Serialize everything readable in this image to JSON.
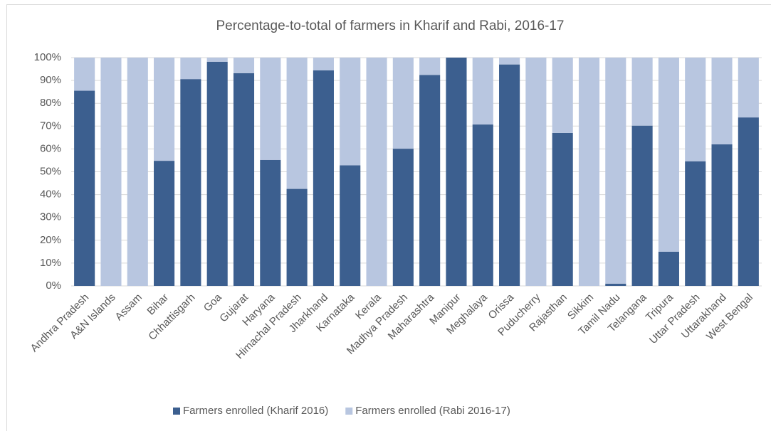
{
  "chart_data": {
    "type": "bar",
    "stacked": true,
    "title": "Percentage-to-total of farmers in Kharif and Rabi, 2016-17",
    "categories": [
      "Andhra Pradesh",
      "A&N Islands",
      "Assam",
      "Bihar",
      "Chhattisgarh",
      "Goa",
      "Gujarat",
      "Haryana",
      "Himachal Pradesh",
      "Jharkhand",
      "Karnataka",
      "Kerala",
      "Madhya Pradesh",
      "Maharashtra",
      "Manipur",
      "Meghalaya",
      "Orissa",
      "Puducherry",
      "Rajasthan",
      "Sikkim",
      "Tamil Nadu",
      "Telangana",
      "Tripura",
      "Uttar Pradesh",
      "Uttarakhand",
      "West Bengal"
    ],
    "series": [
      {
        "name": "Farmers enrolled (Kharif 2016)",
        "color": "#3c5f8f",
        "values": [
          85.5,
          0,
          0,
          54.8,
          90.6,
          98.2,
          93.2,
          55.2,
          42.5,
          94.4,
          52.8,
          0,
          60.1,
          92.4,
          100,
          70.7,
          97,
          0,
          67,
          0,
          1,
          70.2,
          15,
          54.6,
          62,
          73.8
        ]
      },
      {
        "name": "Farmers enrolled (Rabi 2016-17)",
        "color": "#b8c6e0",
        "values": [
          14.5,
          100,
          100,
          45.2,
          9.4,
          1.8,
          6.8,
          44.8,
          57.5,
          5.6,
          47.2,
          100,
          39.9,
          7.6,
          0,
          29.3,
          3,
          100,
          33,
          100,
          99,
          29.8,
          85,
          45.4,
          38,
          26.2
        ]
      }
    ],
    "ylim": [
      0,
      100
    ],
    "yticks": [
      {
        "value": 0,
        "label": "0%"
      },
      {
        "value": 10,
        "label": "10%"
      },
      {
        "value": 20,
        "label": "20%"
      },
      {
        "value": 30,
        "label": "30%"
      },
      {
        "value": 40,
        "label": "40%"
      },
      {
        "value": 50,
        "label": "50%"
      },
      {
        "value": 60,
        "label": "60%"
      },
      {
        "value": 70,
        "label": "70%"
      },
      {
        "value": 80,
        "label": "80%"
      },
      {
        "value": 90,
        "label": "90%"
      },
      {
        "value": 100,
        "label": "100%"
      }
    ],
    "grid": true,
    "legend": "bottom"
  }
}
